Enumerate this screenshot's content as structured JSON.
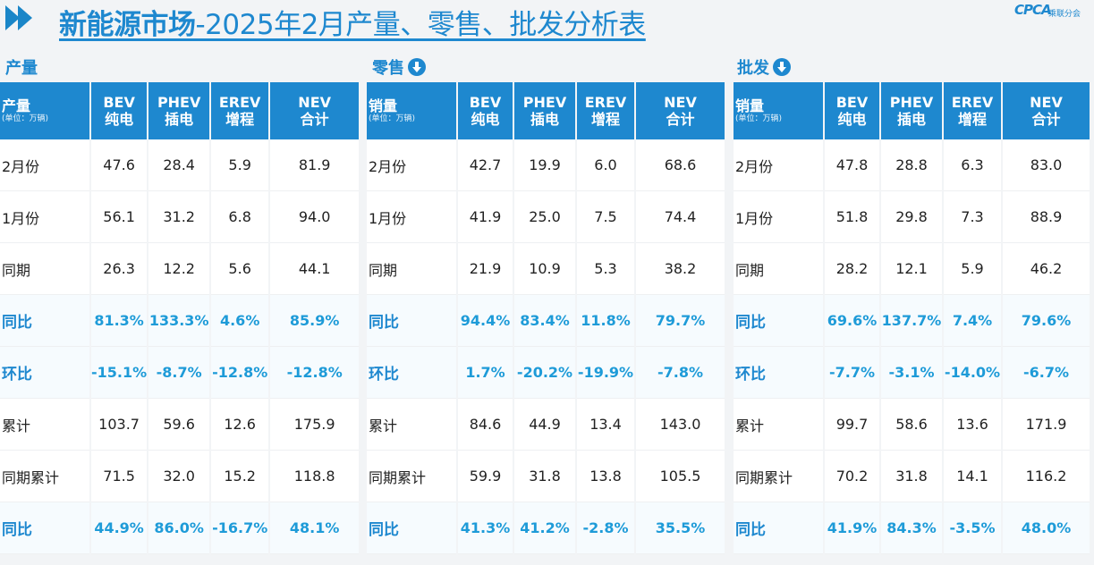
{
  "header": {
    "title_bold": "新能源市场",
    "title_rest": "-2025年2月产量、零售、批发分析表",
    "logo_mark": "CPCA",
    "logo_sub": "乘联分会"
  },
  "columns": [
    "BEV",
    "PHEV",
    "EREV",
    "NEV"
  ],
  "column_subs": [
    "纯电",
    "插电",
    "增程",
    "合计"
  ],
  "unit": "(单位：万辆)",
  "sections": [
    {
      "title": "产量",
      "first_header": "产量",
      "rows": [
        {
          "label": "2月份",
          "values": [
            "47.6",
            "28.4",
            "5.9",
            "81.9"
          ]
        },
        {
          "label": "1月份",
          "values": [
            "56.1",
            "31.2",
            "6.8",
            "94.0"
          ]
        },
        {
          "label": "同期",
          "values": [
            "26.3",
            "12.2",
            "5.6",
            "44.1"
          ]
        },
        {
          "label": "同比",
          "values": [
            "81.3%",
            "133.3%",
            "4.6%",
            "85.9%"
          ]
        },
        {
          "label": "环比",
          "values": [
            "-15.1%",
            "-8.7%",
            "-12.8%",
            "-12.8%"
          ]
        },
        {
          "label": "累计",
          "values": [
            "103.7",
            "59.6",
            "12.6",
            "175.9"
          ]
        },
        {
          "label": "同期累计",
          "values": [
            "71.5",
            "32.0",
            "15.2",
            "118.8"
          ]
        },
        {
          "label": "同比",
          "values": [
            "44.9%",
            "86.0%",
            "-16.7%",
            "48.1%"
          ]
        }
      ]
    },
    {
      "title": "零售",
      "first_header": "销量",
      "rows": [
        {
          "label": "2月份",
          "values": [
            "42.7",
            "19.9",
            "6.0",
            "68.6"
          ]
        },
        {
          "label": "1月份",
          "values": [
            "41.9",
            "25.0",
            "7.5",
            "74.4"
          ]
        },
        {
          "label": "同期",
          "values": [
            "21.9",
            "10.9",
            "5.3",
            "38.2"
          ]
        },
        {
          "label": "同比",
          "values": [
            "94.4%",
            "83.4%",
            "11.8%",
            "79.7%"
          ]
        },
        {
          "label": "环比",
          "values": [
            "1.7%",
            "-20.2%",
            "-19.9%",
            "-7.8%"
          ]
        },
        {
          "label": "累计",
          "values": [
            "84.6",
            "44.9",
            "13.4",
            "143.0"
          ]
        },
        {
          "label": "同期累计",
          "values": [
            "59.9",
            "31.8",
            "13.8",
            "105.5"
          ]
        },
        {
          "label": "同比",
          "values": [
            "41.3%",
            "41.2%",
            "-2.8%",
            "35.5%"
          ]
        }
      ]
    },
    {
      "title": "批发",
      "first_header": "销量",
      "rows": [
        {
          "label": "2月份",
          "values": [
            "47.8",
            "28.8",
            "6.3",
            "83.0"
          ]
        },
        {
          "label": "1月份",
          "values": [
            "51.8",
            "29.8",
            "7.3",
            "88.9"
          ]
        },
        {
          "label": "同期",
          "values": [
            "28.2",
            "12.1",
            "5.9",
            "46.2"
          ]
        },
        {
          "label": "同比",
          "values": [
            "69.6%",
            "137.7%",
            "7.4%",
            "79.6%"
          ]
        },
        {
          "label": "环比",
          "values": [
            "-7.7%",
            "-3.1%",
            "-14.0%",
            "-6.7%"
          ]
        },
        {
          "label": "累计",
          "values": [
            "99.7",
            "58.6",
            "13.6",
            "171.9"
          ]
        },
        {
          "label": "同期累计",
          "values": [
            "70.2",
            "31.8",
            "14.1",
            "116.2"
          ]
        },
        {
          "label": "同比",
          "values": [
            "41.9%",
            "84.3%",
            "-3.5%",
            "48.0%"
          ]
        }
      ]
    }
  ]
}
